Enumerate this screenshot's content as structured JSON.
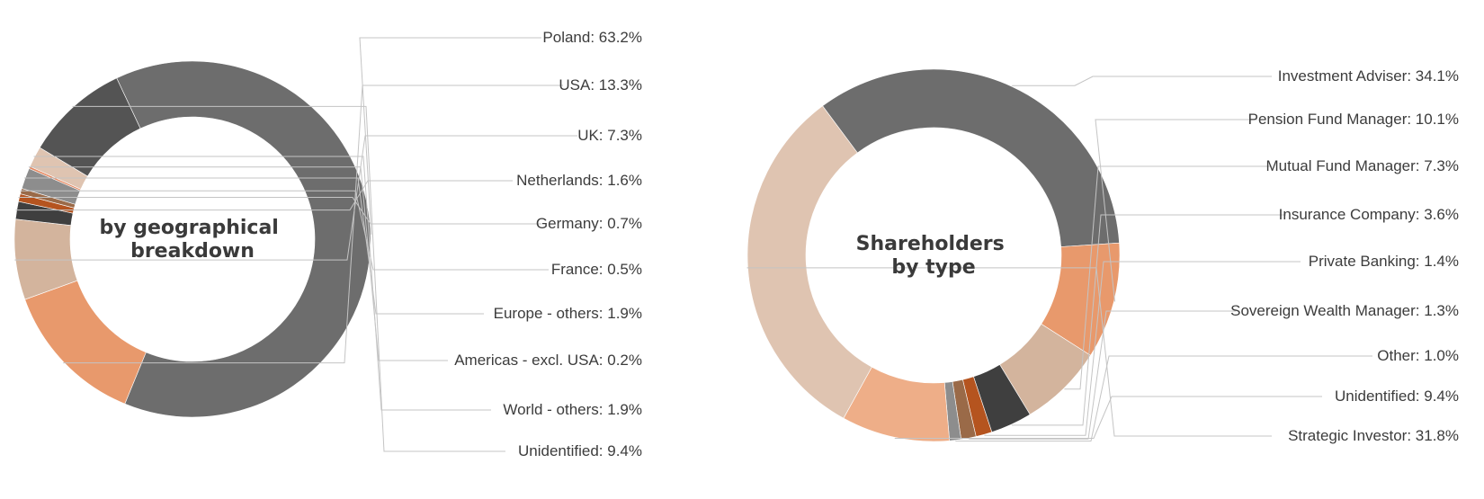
{
  "chart_data": [
    {
      "type": "pie",
      "title": "by geographical breakdown",
      "title_lines": [
        "by geographical",
        "breakdown"
      ],
      "slices": [
        {
          "label": "Poland: 63.2%",
          "name": "Poland",
          "value": 63.2,
          "color": "#6d6d6d"
        },
        {
          "label": "USA: 13.3%",
          "name": "USA",
          "value": 13.3,
          "color": "#e8996c"
        },
        {
          "label": "UK: 7.3%",
          "name": "UK",
          "value": 7.3,
          "color": "#d3b49d"
        },
        {
          "label": "Netherlands: 1.6%",
          "name": "Netherlands",
          "value": 1.6,
          "color": "#3f3f3f"
        },
        {
          "label": "Germany: 0.7%",
          "name": "Germany",
          "value": 0.7,
          "color": "#b5541f"
        },
        {
          "label": "France: 0.5%",
          "name": "France",
          "value": 0.5,
          "color": "#9a6a48"
        },
        {
          "label": "Europe - others: 1.9%",
          "name": "Europe - others",
          "value": 1.9,
          "color": "#8d8d8d"
        },
        {
          "label": "Americas - excl. USA: 0.2%",
          "name": "Americas - excl. USA",
          "value": 0.2,
          "color": "#e58a63"
        },
        {
          "label": "World - others: 1.9%",
          "name": "World - others",
          "value": 1.9,
          "color": "#dfc4b1"
        },
        {
          "label": "Unidentified: 9.4%",
          "name": "Unidentified",
          "value": 9.4,
          "color": "#545454"
        }
      ]
    },
    {
      "type": "pie",
      "title": "Shareholders by type",
      "title_lines": [
        "Shareholders",
        "by type"
      ],
      "slices": [
        {
          "label": "Investment Adviser: 34.1%",
          "name": "Investment Adviser",
          "value": 34.1,
          "color": "#6d6d6d"
        },
        {
          "label": "Pension Fund Manager: 10.1%",
          "name": "Pension Fund Manager",
          "value": 10.1,
          "color": "#e8996c"
        },
        {
          "label": "Mutual Fund Manager: 7.3%",
          "name": "Mutual Fund Manager",
          "value": 7.3,
          "color": "#d3b49d"
        },
        {
          "label": "Insurance Company: 3.6%",
          "name": "Insurance Company",
          "value": 3.6,
          "color": "#3f3f3f"
        },
        {
          "label": "Private Banking: 1.4%",
          "name": "Private Banking",
          "value": 1.4,
          "color": "#b5541f"
        },
        {
          "label": "Sovereign Wealth Manager: 1.3%",
          "name": "Sovereign Wealth Manager",
          "value": 1.3,
          "color": "#9a6a48"
        },
        {
          "label": "Other: 1.0%",
          "name": "Other",
          "value": 1.0,
          "color": "#8d8d8d"
        },
        {
          "label": "Unidentified: 9.4%",
          "name": "Unidentified",
          "value": 9.4,
          "color": "#eeae88"
        },
        {
          "label": "Strategic Investor: 31.8%",
          "name": "Strategic Investor",
          "value": 31.8,
          "color": "#dfc4b1"
        }
      ]
    }
  ]
}
